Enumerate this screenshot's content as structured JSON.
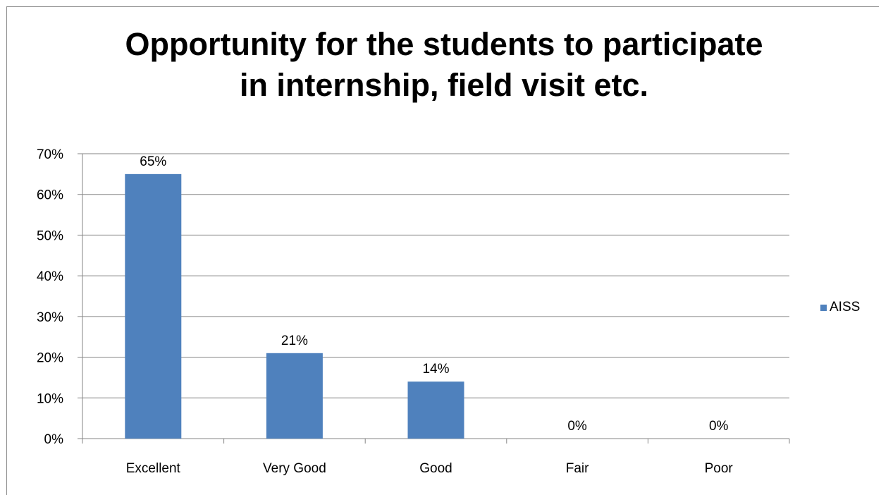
{
  "chart_data": {
    "type": "bar",
    "title_lines": [
      "Opportunity for the students to participate",
      "in internship, field visit etc."
    ],
    "categories": [
      "Excellent",
      "Very Good",
      "Good",
      "Fair",
      "Poor"
    ],
    "series": [
      {
        "name": "AISS",
        "values": [
          65,
          21,
          14,
          0,
          0
        ],
        "labels": [
          "65%",
          "21%",
          "14%",
          "0%",
          "0%"
        ],
        "color": "#4f81bd"
      }
    ],
    "ylim": [
      0,
      70
    ],
    "yticks": [
      0,
      10,
      20,
      30,
      40,
      50,
      60,
      70
    ],
    "ytick_labels": [
      "0%",
      "10%",
      "20%",
      "30%",
      "40%",
      "50%",
      "60%",
      "70%"
    ],
    "grid": true,
    "legend_position": "right",
    "xlabel": "",
    "ylabel": ""
  }
}
